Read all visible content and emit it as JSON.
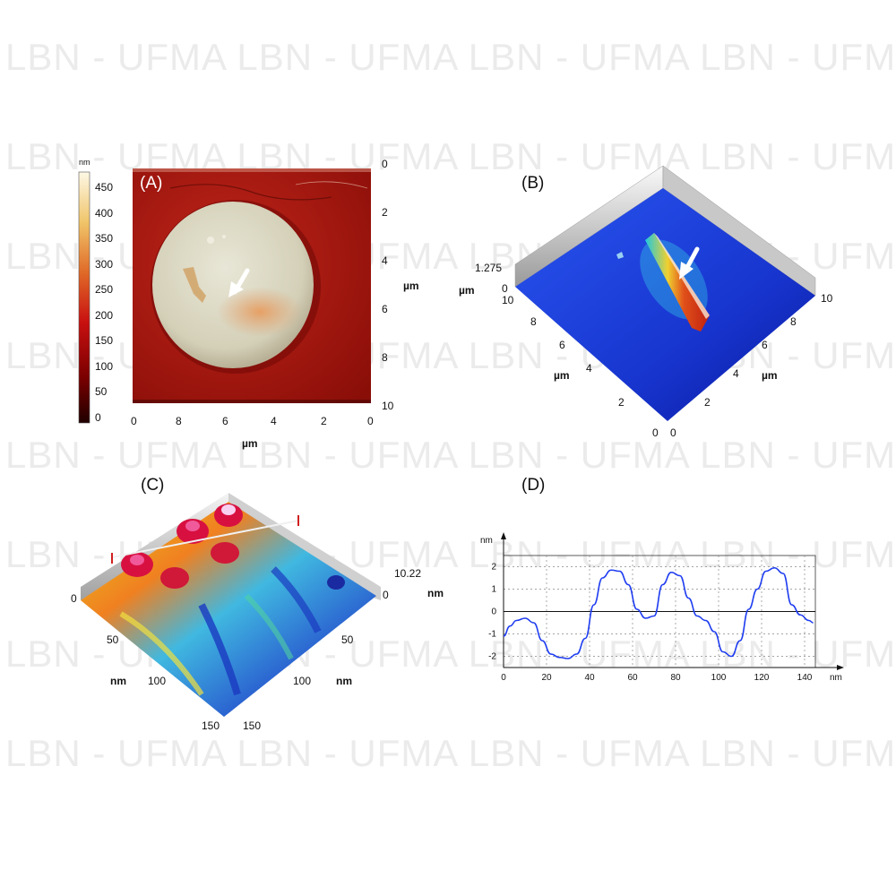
{
  "watermark": {
    "text": "LBN - UFMA LBN - UFMA LBN - UFMA LBN - UFMA",
    "rows": 8
  },
  "panel_a": {
    "label": "(A)",
    "colorbar": {
      "unit": "nm",
      "ticks": [
        "450",
        "400",
        "350",
        "300",
        "250",
        "200",
        "150",
        "100",
        "50",
        "0"
      ]
    },
    "right_axis": {
      "ticks": [
        "0",
        "2",
        "4",
        "6",
        "8",
        "10"
      ],
      "unit": "µm"
    },
    "bottom_axis": {
      "ticks": [
        "0",
        "8",
        "6",
        "4",
        "2",
        "0"
      ],
      "unit": "µm"
    },
    "colors": {
      "substrate": "#a8140c",
      "disk": "#d9d6c3",
      "arrow": "#ffffff"
    }
  },
  "panel_b": {
    "label": "(B)",
    "z_max": "1.275",
    "z_unit": "µm",
    "z_zero": "0",
    "left_axis": {
      "ticks": [
        "10",
        "8",
        "6",
        "4",
        "2",
        "0"
      ],
      "unit": "µm"
    },
    "right_axis": {
      "ticks": [
        "0",
        "2",
        "4",
        "6",
        "8",
        "10"
      ],
      "unit": "µm"
    },
    "colors": {
      "surface": "#1a3ad6",
      "ridge": "#d8561a",
      "arrow": "#ffffff"
    }
  },
  "panel_c": {
    "label": "(C)",
    "z_max": "10.22",
    "z_unit": "nm",
    "z_zero": "0",
    "left_axis": {
      "ticks": [
        "0",
        "50",
        "100",
        "150"
      ],
      "unit": "nm"
    },
    "right_axis": {
      "ticks": [
        "50",
        "100",
        "150"
      ],
      "unit": "nm"
    }
  },
  "chart_data": {
    "type": "line",
    "title": "(D)",
    "xlabel": "nm",
    "ylabel": "nm",
    "xlim": [
      0,
      145
    ],
    "ylim": [
      -2.5,
      2.5
    ],
    "xticks": [
      0,
      20,
      40,
      60,
      80,
      100,
      120,
      140
    ],
    "yticks": [
      -2,
      -1,
      0,
      1,
      2
    ],
    "grid": true,
    "line_color": "#1f3df0",
    "series": [
      {
        "x": [
          0,
          3,
          6,
          10,
          14,
          18,
          22,
          26,
          30,
          34,
          38,
          42,
          46,
          50,
          54,
          58,
          62,
          66,
          70,
          74,
          78,
          82,
          86,
          90,
          94,
          98,
          102,
          106,
          110,
          114,
          118,
          122,
          126,
          130,
          134,
          138,
          142,
          144
        ],
        "values": [
          -1.1,
          -0.65,
          -0.4,
          -0.3,
          -0.5,
          -1.3,
          -1.9,
          -2.05,
          -2.1,
          -1.9,
          -1.2,
          0.3,
          1.5,
          1.85,
          1.8,
          1.2,
          0.1,
          -0.3,
          -0.2,
          1.2,
          1.75,
          1.6,
          0.6,
          -0.2,
          -0.4,
          -0.9,
          -1.8,
          -2.0,
          -1.3,
          0.1,
          1.0,
          1.8,
          1.95,
          1.7,
          0.3,
          -0.15,
          -0.4,
          -0.5
        ]
      }
    ]
  }
}
